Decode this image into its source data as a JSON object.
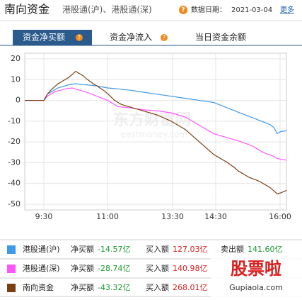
{
  "header": {
    "title": "南向资金",
    "subtitle": "港股通(沪)、港股通(深)",
    "help": "?",
    "date_label": "数据日期：",
    "date": "2021-03-04",
    "more": "更多"
  },
  "tabs": [
    {
      "label": "资金净买额",
      "help": "?"
    },
    {
      "label": "资金净流入",
      "help": "?"
    },
    {
      "label": "当日资金余额"
    }
  ],
  "chart_data": {
    "type": "line",
    "watermark": "东方财富网",
    "watermark_sub": "eastmoney.com",
    "x": [
      -27,
      0,
      5,
      10,
      15,
      20,
      25,
      30,
      35,
      40,
      45,
      55,
      60,
      70,
      75,
      85,
      90,
      100,
      105,
      110,
      120,
      130,
      140,
      160,
      180,
      200,
      220,
      240,
      255,
      260,
      270,
      275,
      280,
      285,
      290,
      295,
      300,
      305,
      310,
      315,
      320,
      325,
      330,
      335,
      343
    ],
    "series": [
      {
        "name": "港股通(沪)",
        "color": "#3d9ae8",
        "values": [
          0,
          0,
          3,
          4,
          5,
          6,
          6.5,
          7,
          7.5,
          7.8,
          8,
          7.6,
          7.5,
          7.2,
          7,
          6.3,
          6,
          5.7,
          5.5,
          5.3,
          5,
          4.5,
          4,
          3,
          2,
          1,
          0,
          -1,
          -3,
          -3.7,
          -5,
          -5.7,
          -6.3,
          -7,
          -7.7,
          -8.3,
          -9,
          -9.7,
          -10.3,
          -11,
          -11.7,
          -13,
          -16,
          -15,
          -14.57
        ]
      },
      {
        "name": "港股通(深)",
        "color": "#ff55ff",
        "values": [
          0,
          0,
          2,
          3,
          4,
          4.6,
          5,
          5.5,
          5.8,
          6,
          5.5,
          4.5,
          4,
          2.7,
          2,
          0.7,
          0,
          -2,
          -3,
          -3.2,
          -3.5,
          -4,
          -4.5,
          -5,
          -6,
          -8,
          -12,
          -16,
          -17.5,
          -18,
          -19,
          -19.5,
          -20,
          -20.7,
          -21.3,
          -22,
          -23,
          -24,
          -25,
          -25.7,
          -26.3,
          -27,
          -28,
          -28.3,
          -28.74
        ]
      },
      {
        "name": "南向资金",
        "color": "#7b3f12",
        "values": [
          0,
          0,
          3,
          5,
          6.5,
          8,
          9,
          10,
          11,
          12.5,
          14,
          12,
          10.5,
          8,
          7,
          4.7,
          3.3,
          0,
          -1,
          -2,
          -3,
          -4,
          -5,
          -7,
          -10,
          -14,
          -20,
          -26,
          -29,
          -30,
          -32.5,
          -34,
          -35,
          -36,
          -37,
          -37.7,
          -38.3,
          -39,
          -40,
          -41,
          -42,
          -43.5,
          -45,
          -44.5,
          -43.32
        ]
      }
    ],
    "xlim": [
      -27,
      343
    ],
    "xticks": [
      {
        "value": 0,
        "label": "9:30"
      },
      {
        "value": 90,
        "label": "11:00"
      },
      {
        "value": 182,
        "label": "13:30"
      },
      {
        "value": 243,
        "label": "14:30"
      },
      {
        "value": 334,
        "label": "16:00"
      }
    ],
    "ylim": [
      -50,
      20
    ],
    "yticks": [
      -50,
      -40,
      -30,
      -20,
      -10,
      0,
      10,
      20
    ],
    "grid": true
  },
  "table": {
    "rows": [
      {
        "name": "港股通(沪)",
        "net_label": "净买额",
        "net": "-14.57亿",
        "buy_label": "买入额",
        "buy": "127.03亿",
        "sell_label": "卖出额",
        "sell": "141.60亿"
      },
      {
        "name": "港股通(深)",
        "net_label": "净买额",
        "net": "-28.74亿",
        "buy_label": "买入额",
        "buy": "140.98亿"
      },
      {
        "name": "南向资金",
        "net_label": "净买额",
        "net": "-43.32亿",
        "buy_label": "买入额",
        "buy": "268.01亿"
      }
    ]
  },
  "logo": {
    "title": "股票啦",
    "url": "Gupiaola.com"
  }
}
